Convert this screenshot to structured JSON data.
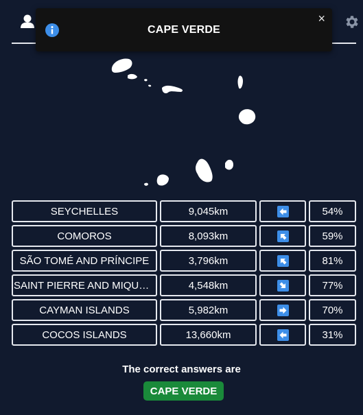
{
  "toast": {
    "text": "CAPE VERDE",
    "close_label": "×",
    "icon": "info-icon"
  },
  "header": {
    "left_icon": "user-icon",
    "right_icon": "gear-icon"
  },
  "map": {
    "icon": "country-silhouette"
  },
  "guesses": [
    {
      "country": "SEYCHELLES",
      "distance": "9,045km",
      "direction": "left",
      "percent": "54%"
    },
    {
      "country": "COMOROS",
      "distance": "8,093km",
      "direction": "up-left",
      "percent": "59%"
    },
    {
      "country": "SÃO TOMÉ AND PRÍNCIPE",
      "distance": "3,796km",
      "direction": "up-left",
      "percent": "81%"
    },
    {
      "country": "SAINT PIERRE AND MIQUELON",
      "distance": "4,548km",
      "direction": "down-right",
      "percent": "77%"
    },
    {
      "country": "CAYMAN ISLANDS",
      "distance": "5,982km",
      "direction": "right",
      "percent": "70%"
    },
    {
      "country": "COCOS ISLANDS",
      "distance": "13,660km",
      "direction": "left",
      "percent": "31%"
    }
  ],
  "result": {
    "label": "The correct answers are",
    "answer": "CAPE VERDE",
    "answer_color": "#1a8a3a"
  }
}
